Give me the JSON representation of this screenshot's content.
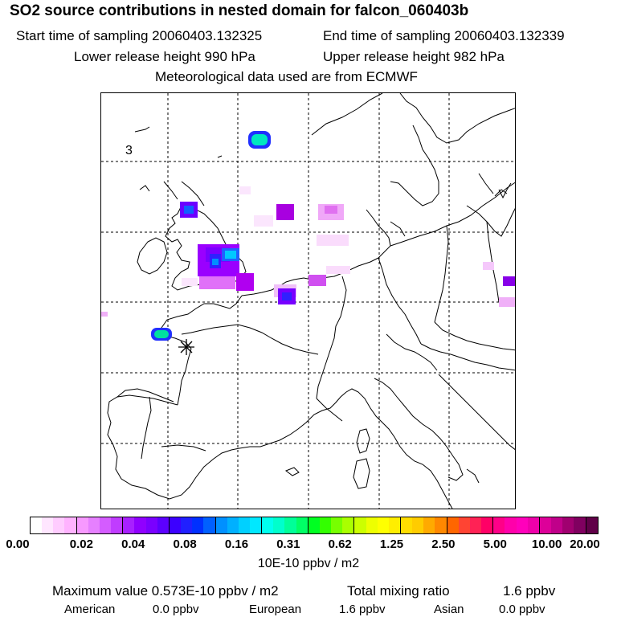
{
  "header": {
    "title": "SO2 source contributions in nested domain for falcon_060403b",
    "start_label": "Start time of sampling 20060403.132325",
    "end_label": "End time of sampling 20060403.132339",
    "lower_label": "Lower release height  990 hPa",
    "upper_label": "Upper release height  982 hPa",
    "met_label": "Meteorological data used are from ECMWF"
  },
  "map": {
    "corner_label": "3",
    "source_marker": "asterisk-icon"
  },
  "colorbar": {
    "ticks": [
      "0.00",
      "0.02",
      "0.04",
      "0.08",
      "0.16",
      "0.31",
      "0.62",
      "1.25",
      "2.50",
      "5.00",
      "10.00",
      "20.00"
    ],
    "unit": "10E-10 ppbv / m2",
    "colors": [
      "#ffffff",
      "#ffe6ff",
      "#ffccff",
      "#ffb3ff",
      "#f799ff",
      "#e680ff",
      "#d45cff",
      "#c03cff",
      "#a820ff",
      "#9000ff",
      "#7a00ff",
      "#5c00ff",
      "#3c00ff",
      "#2020ff",
      "#0030ff",
      "#0060ff",
      "#0090ff",
      "#00b0ff",
      "#00d0ff",
      "#00e8ff",
      "#00ffee",
      "#00ffcc",
      "#00ff99",
      "#00ff66",
      "#00ff22",
      "#33ff00",
      "#77ff00",
      "#aaff00",
      "#ccff00",
      "#eeff00",
      "#ffff00",
      "#ffee00",
      "#ffdd00",
      "#ffcc00",
      "#ffaa00",
      "#ff8800",
      "#ff6600",
      "#ff4433",
      "#ff2255",
      "#ff0066",
      "#ff0088",
      "#ff00aa",
      "#ff00bb",
      "#ee00aa",
      "#dd0099",
      "#c0008a",
      "#a00070",
      "#800060",
      "#600048"
    ]
  },
  "footer": {
    "max_label": "Maximum value  0.573E-10 ppbv / m2",
    "total_label": "Total mixing ratio",
    "total_value": "1.6 ppbv",
    "american_label": "American",
    "american_value": "0.0 ppbv",
    "european_label": "European",
    "european_value": "1.6 ppbv",
    "asian_label": "Asian",
    "asian_value": "0.0 ppbv"
  }
}
